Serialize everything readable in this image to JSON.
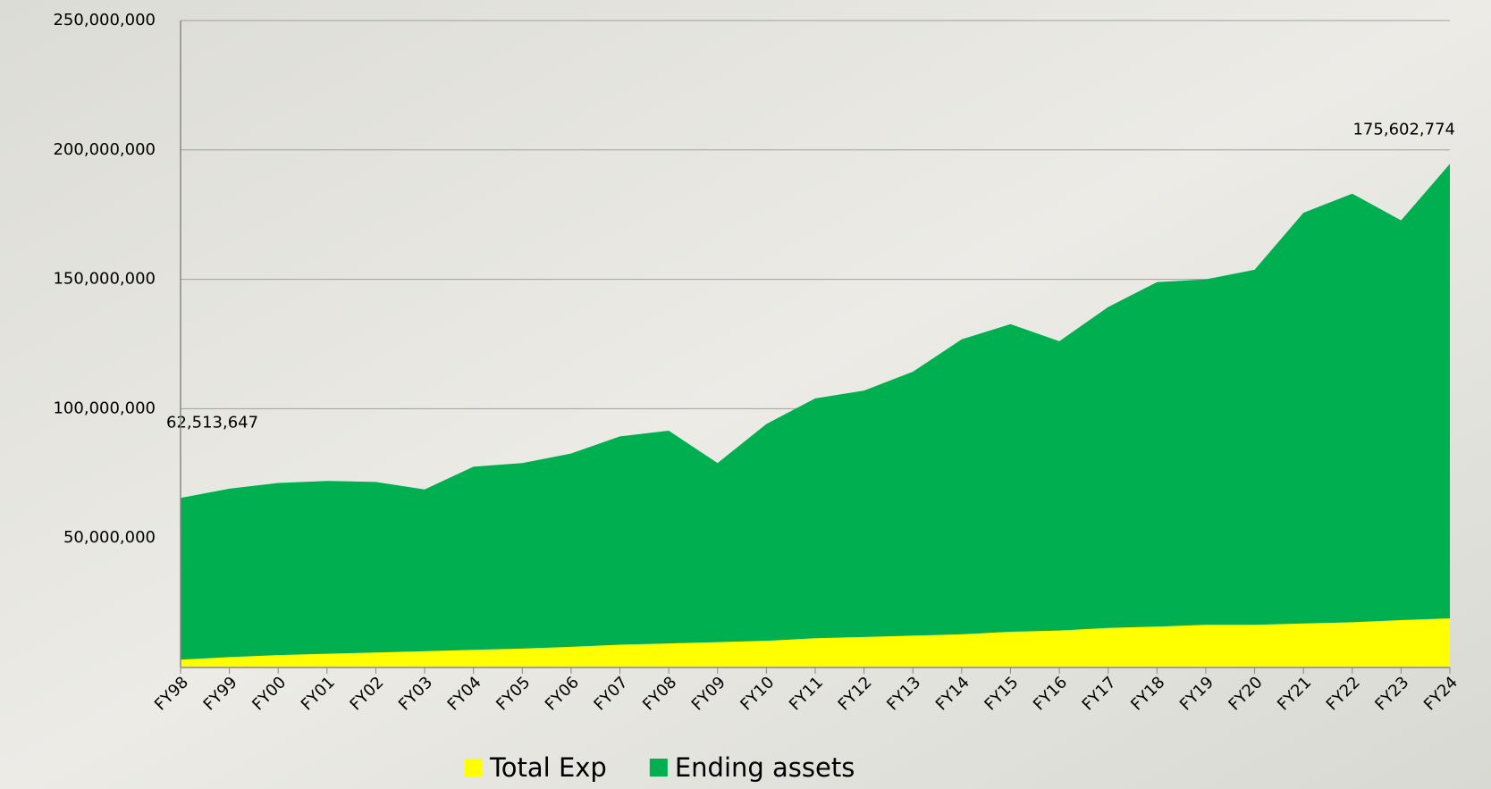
{
  "chart_data": {
    "type": "stacked-area",
    "categories": [
      "FY98",
      "FY99",
      "FY00",
      "FY01",
      "FY02",
      "FY03",
      "FY04",
      "FY05",
      "FY06",
      "FY07",
      "FY08",
      "FY09",
      "FY10",
      "FY11",
      "FY12",
      "FY13",
      "FY14",
      "FY15",
      "FY16",
      "FY17",
      "FY18",
      "FY19",
      "FY20",
      "FY21",
      "FY22",
      "FY23",
      "FY24"
    ],
    "series": [
      {
        "name": "Total Exp",
        "color": "#ffff00",
        "values": [
          3000000,
          4000000,
          4800000,
          5300000,
          5800000,
          6300000,
          6800000,
          7300000,
          8000000,
          8800000,
          9300000,
          9800000,
          10300000,
          11300000,
          11800000,
          12300000,
          12800000,
          13800000,
          14300000,
          15300000,
          15800000,
          16500000,
          16500000,
          17000000,
          17500000,
          18300000,
          19000000
        ]
      },
      {
        "name": "Ending assets",
        "color": "#00b050",
        "values": [
          62513647,
          65100000,
          66500000,
          66800000,
          65900000,
          62500000,
          70800000,
          71700000,
          74700000,
          80500000,
          82200000,
          69200000,
          83800000,
          92700000,
          95200000,
          102000000,
          114000000,
          118900000,
          111800000,
          124000000,
          133100000,
          133500000,
          137200000,
          158700000,
          165600000,
          154500000,
          175602774
        ],
        "value_labels": [
          "62,513,647",
          null,
          null,
          null,
          null,
          null,
          null,
          null,
          null,
          null,
          null,
          null,
          null,
          null,
          null,
          null,
          null,
          null,
          null,
          null,
          null,
          null,
          null,
          null,
          null,
          null,
          "175,602,774"
        ]
      }
    ],
    "ylim": [
      0,
      250000000
    ],
    "yticks": [
      {
        "value": 50000000,
        "label": "50,000,000"
      },
      {
        "value": 100000000,
        "label": "100,000,000"
      },
      {
        "value": 150000000,
        "label": "150,000,000"
      },
      {
        "value": 200000000,
        "label": "200,000,000"
      },
      {
        "value": 250000000,
        "label": "250,000,000"
      }
    ],
    "grid": true,
    "legend": "bottom"
  }
}
